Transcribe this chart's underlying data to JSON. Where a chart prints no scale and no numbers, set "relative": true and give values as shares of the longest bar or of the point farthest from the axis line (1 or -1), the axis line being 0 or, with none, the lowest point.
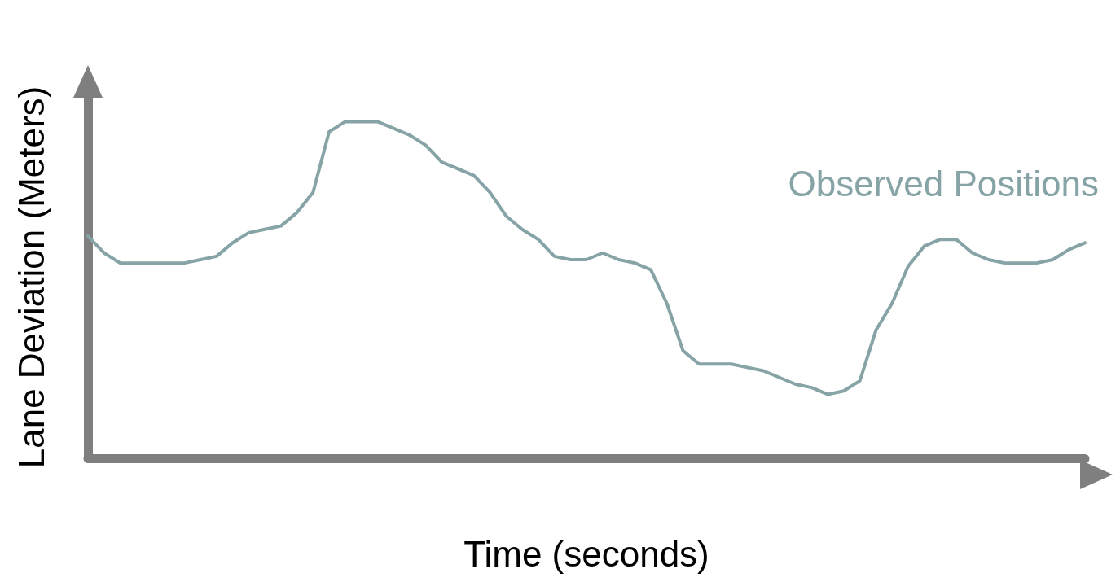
{
  "chart_data": {
    "type": "line",
    "relative": true,
    "xlabel": "Time (seconds)",
    "ylabel": "Lane Deviation (Meters)",
    "grid": false,
    "legend": false,
    "marker": "none",
    "line_style": "solid",
    "categories": [
      null,
      null,
      null,
      null,
      null,
      null,
      null,
      null,
      null,
      null,
      null,
      null,
      null,
      null,
      null,
      null,
      null,
      null,
      null,
      null,
      null,
      null,
      null,
      null,
      null,
      null,
      null,
      null,
      null,
      null,
      null,
      null,
      null,
      null,
      null,
      null,
      null,
      null,
      null,
      null,
      null,
      null,
      null,
      null,
      null,
      null,
      null,
      null,
      null,
      null,
      null,
      null,
      null,
      null,
      null,
      null,
      null,
      null,
      null,
      null,
      null,
      null,
      null
    ],
    "series": [
      {
        "name": "Observed Positions",
        "color": "#86a3a6",
        "values": [
          0.66,
          0.61,
          0.58,
          0.58,
          0.58,
          0.58,
          0.58,
          0.59,
          0.6,
          0.64,
          0.67,
          0.68,
          0.69,
          0.73,
          0.79,
          0.97,
          1.0,
          1,
          1.0,
          0.98,
          0.96,
          0.93,
          0.88,
          0.86,
          0.84,
          0.79,
          0.72,
          0.68,
          0.65,
          0.6,
          0.59,
          0.59,
          0.61,
          0.59,
          0.58,
          0.56,
          0.46,
          0.32,
          0.28,
          0.28,
          0.28,
          0.27,
          0.26,
          0.24,
          0.22,
          0.21,
          0.19,
          0.2,
          0.23,
          0.38,
          0.46,
          0.57,
          0.63,
          0.65,
          0.65,
          0.61,
          0.59,
          0.58,
          0.58,
          0.58,
          0.59,
          0.62,
          0.64
        ]
      }
    ]
  }
}
